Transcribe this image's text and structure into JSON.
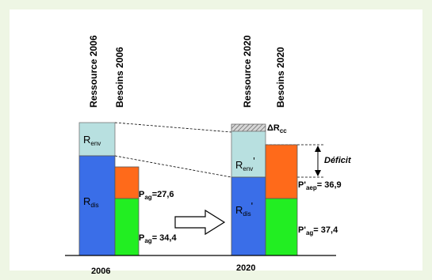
{
  "labels": {
    "ressource_2006": "Ressource 2006",
    "besoins_2006": "Besoins 2006",
    "ressource_2020": "Ressource 2020",
    "besoins_2020": "Besoins 2020"
  },
  "segments": {
    "renv_main": "R",
    "renv_sub": "env",
    "rdis_main": "R",
    "rdis_sub": "dis",
    "renv2_main": "R",
    "renv2_sub": "env",
    "renv2_prime": "'",
    "rdis2_main": "R",
    "rdis2_sub": "dis",
    "rdis2_prime": "'"
  },
  "values": {
    "pag_2006_main": "P",
    "pag_2006_sub": "ag",
    "pag_2006_val": "= 34,4",
    "paep_2006_main": "P",
    "paep_2006_sub": "ag",
    "paep_2006_val": "=27,6",
    "paep_2020_main": "P'",
    "paep_2020_sub": "aep",
    "paep_2020_val": "= 36,9",
    "pag_2020_main": "P'",
    "pag_2020_sub": "ag",
    "pag_2020_val": "= 37,4"
  },
  "delta": {
    "main": "ΔR",
    "sub": "cc"
  },
  "deficit": "Déficit",
  "years": {
    "y2006": "2006",
    "y2020": "2020"
  },
  "colors": {
    "renv": "#b8e0e0",
    "rdis": "#3a6ee8",
    "orange": "#ff6a1a",
    "green": "#22ee22",
    "hatch": "#888888"
  }
}
